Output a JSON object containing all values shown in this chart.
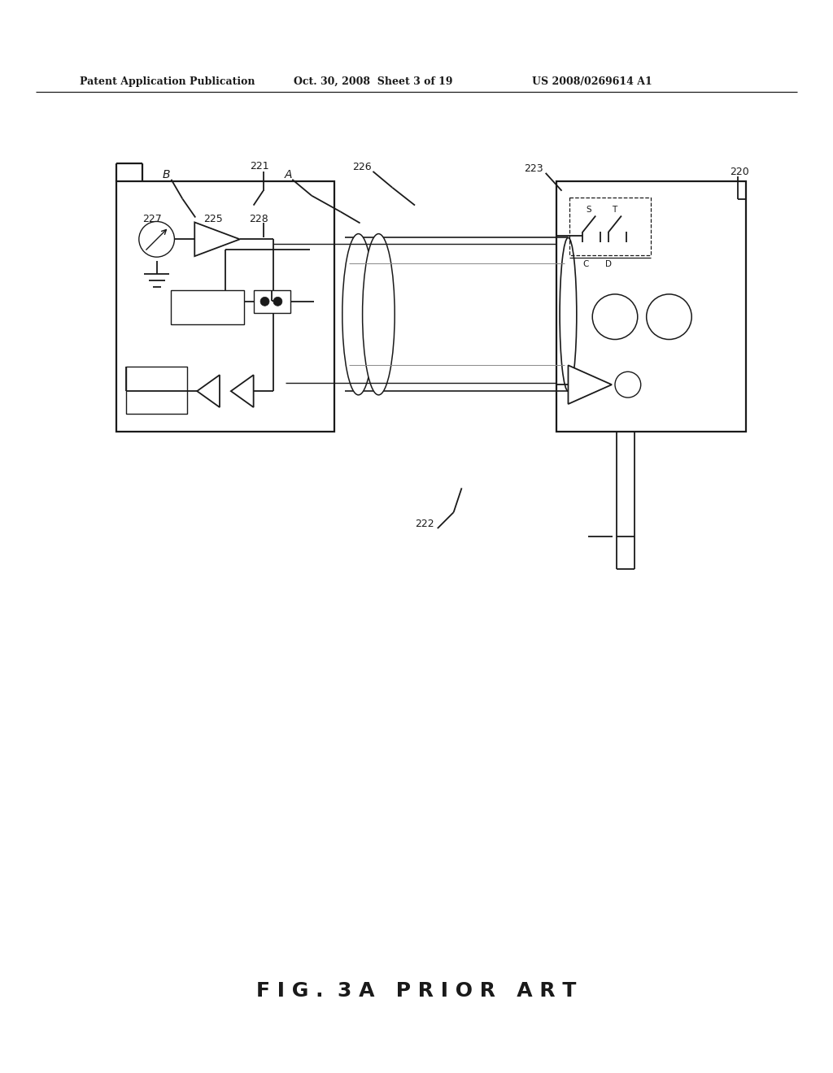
{
  "bg_color": "#ffffff",
  "line_color": "#1a1a1a",
  "header_left": "Patent Application Publication",
  "header_mid": "Oct. 30, 2008  Sheet 3 of 19",
  "header_right": "US 2008/0269614 A1",
  "caption": "F I G .  3 A   P R I O R   A R T"
}
